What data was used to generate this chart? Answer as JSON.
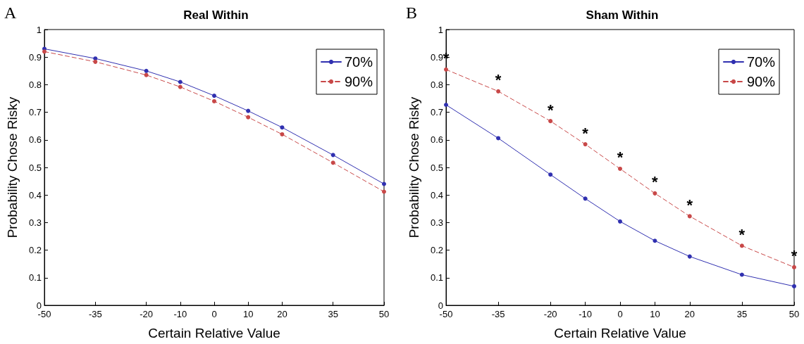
{
  "chart_data": [
    {
      "type": "line",
      "title": "Real Within",
      "xlabel": "Certain Relative Value",
      "ylabel": "Probability Chose Risky",
      "annotations": [
        "A"
      ],
      "x": [
        -50,
        -35,
        -20,
        -10,
        0,
        10,
        20,
        35,
        50
      ],
      "series": [
        {
          "name": "70%",
          "color": "#3030b0",
          "line_style": "solid",
          "values": [
            0.93,
            0.895,
            0.85,
            0.81,
            0.76,
            0.705,
            0.645,
            0.545,
            0.44
          ]
        },
        {
          "name": "90%",
          "color": "#c84848",
          "line_style": "dashed",
          "values": [
            0.92,
            0.883,
            0.835,
            0.792,
            0.74,
            0.682,
            0.62,
            0.517,
            0.412
          ]
        }
      ],
      "xlim": [
        -50,
        50
      ],
      "xticks": [
        -50,
        -35,
        -20,
        -10,
        0,
        10,
        20,
        35,
        50
      ],
      "ylim": [
        0,
        1
      ],
      "yticks": [
        0,
        0.1,
        0.2,
        0.3,
        0.4,
        0.5,
        0.6,
        0.7,
        0.8,
        0.9,
        1
      ],
      "grid": false,
      "legend": "top right",
      "marker": "circle"
    },
    {
      "type": "line",
      "title": "Sham Within",
      "xlabel": "Certain Relative Value",
      "ylabel": "Probability Chose Risky",
      "annotations": [
        "B",
        {
          "text": "*",
          "x": -50,
          "y": 0.855
        },
        {
          "text": "*",
          "x": -35,
          "y": 0.776
        },
        {
          "text": "*",
          "x": -20,
          "y": 0.668
        },
        {
          "text": "*",
          "x": -10,
          "y": 0.584
        },
        {
          "text": "*",
          "x": 0,
          "y": 0.495
        },
        {
          "text": "*",
          "x": 10,
          "y": 0.406
        },
        {
          "text": "*",
          "x": 20,
          "y": 0.323
        },
        {
          "text": "*",
          "x": 35,
          "y": 0.216
        },
        {
          "text": "*",
          "x": 50,
          "y": 0.138
        }
      ],
      "x": [
        -50,
        -35,
        -20,
        -10,
        0,
        10,
        20,
        35,
        50
      ],
      "series": [
        {
          "name": "70%",
          "color": "#3030b0",
          "line_style": "solid",
          "values": [
            0.727,
            0.606,
            0.474,
            0.387,
            0.304,
            0.234,
            0.177,
            0.111,
            0.069
          ]
        },
        {
          "name": "90%",
          "color": "#c84848",
          "line_style": "dashed",
          "values": [
            0.855,
            0.776,
            0.668,
            0.584,
            0.495,
            0.406,
            0.323,
            0.216,
            0.138
          ]
        }
      ],
      "xlim": [
        -50,
        50
      ],
      "xticks": [
        -50,
        -35,
        -20,
        -10,
        0,
        10,
        20,
        35,
        50
      ],
      "ylim": [
        0,
        1
      ],
      "yticks": [
        0,
        0.1,
        0.2,
        0.3,
        0.4,
        0.5,
        0.6,
        0.7,
        0.8,
        0.9,
        1
      ],
      "grid": false,
      "legend": "top right",
      "marker": "circle"
    }
  ]
}
